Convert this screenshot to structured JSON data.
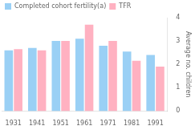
{
  "chart_data": {
    "type": "bar",
    "categories": [
      "1931",
      "1941",
      "1951",
      "1961",
      "1971",
      "1981",
      "1991"
    ],
    "series": [
      {
        "name": "Completed cohort fertility(a)",
        "values": [
          2.6,
          2.7,
          3.0,
          3.1,
          2.8,
          2.55,
          2.4
        ]
      },
      {
        "name": "TFR",
        "values": [
          2.65,
          2.6,
          3.0,
          3.7,
          3.0,
          2.15,
          1.9
        ]
      }
    ],
    "ylabel": "Average no. children",
    "ylim": [
      0,
      4
    ],
    "yticks": [
      0,
      1,
      2,
      3,
      4
    ],
    "grid": false,
    "legend": "upper left"
  }
}
